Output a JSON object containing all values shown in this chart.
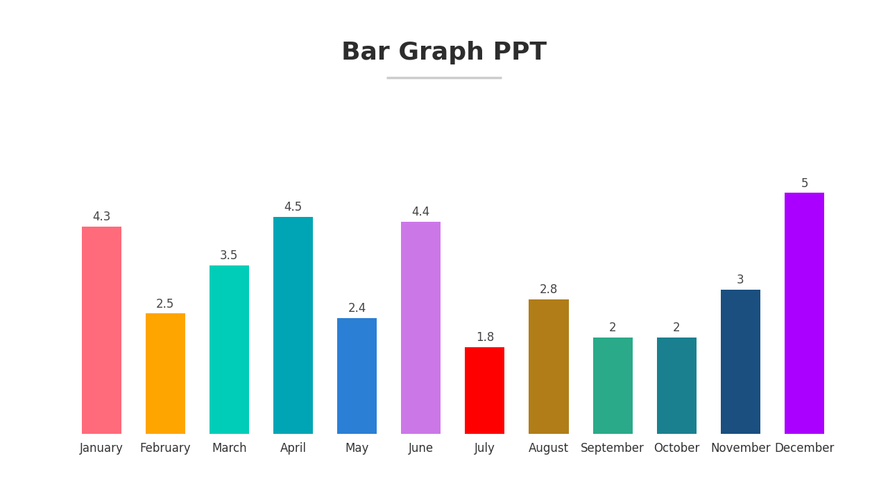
{
  "title": "Bar Graph PPT",
  "title_fontsize": 26,
  "title_fontweight": "bold",
  "title_color": "#2d2d2d",
  "categories": [
    "January",
    "February",
    "March",
    "April",
    "May",
    "June",
    "July",
    "August",
    "September",
    "October",
    "November",
    "December"
  ],
  "values": [
    4.3,
    2.5,
    3.5,
    4.5,
    2.4,
    4.4,
    1.8,
    2.8,
    2.0,
    2.0,
    3.0,
    5.0
  ],
  "bar_colors": [
    "#FF6B7A",
    "#FFA500",
    "#00CDB8",
    "#00A5B5",
    "#2B7FD4",
    "#CC77E8",
    "#FF0000",
    "#B07D18",
    "#2AAA88",
    "#1A8090",
    "#1A4F80",
    "#AA00FF"
  ],
  "value_labels": [
    "4.3",
    "2.5",
    "3.5",
    "4.5",
    "2.4",
    "4.4",
    "1.8",
    "2.8",
    "2",
    "2",
    "3",
    "5"
  ],
  "ylim": [
    0,
    6
  ],
  "background_color": "#ffffff",
  "bar_width": 0.62,
  "label_fontsize": 12,
  "tick_fontsize": 12,
  "subtitle_line_color": "#cccccc",
  "footer_color": "#d8d8d8"
}
